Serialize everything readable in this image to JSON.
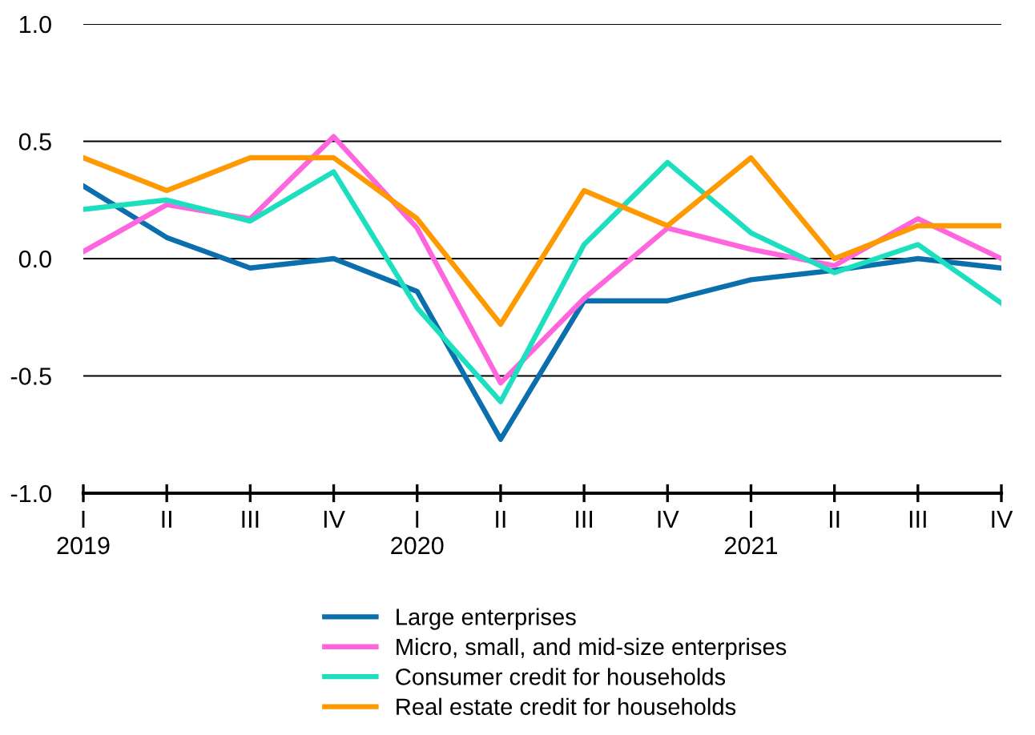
{
  "chart_data": {
    "type": "line",
    "categories": [
      "I\n2019",
      "II",
      "III",
      "IV",
      "I\n2020",
      "II",
      "III",
      "IV",
      "I\n2021",
      "II",
      "III",
      "IV"
    ],
    "series": [
      {
        "name": "Large enterprises",
        "color": "#0b6fad",
        "values": [
          0.31,
          0.09,
          -0.04,
          0.0,
          -0.14,
          -0.77,
          -0.18,
          -0.18,
          -0.09,
          -0.05,
          0.0,
          -0.04
        ]
      },
      {
        "name": "Micro, small, and mid-size enterprises",
        "color": "#ff66dd",
        "values": [
          0.03,
          0.23,
          0.17,
          0.52,
          0.13,
          -0.53,
          -0.17,
          0.13,
          0.04,
          -0.03,
          0.17,
          0.0
        ]
      },
      {
        "name": "Consumer credit for households",
        "color": "#1ddfbf",
        "values": [
          0.21,
          0.25,
          0.16,
          0.37,
          -0.21,
          -0.61,
          0.06,
          0.41,
          0.11,
          -0.06,
          0.06,
          -0.19
        ]
      },
      {
        "name": "Real estate credit for households",
        "color": "#ff9900",
        "values": [
          0.43,
          0.29,
          0.43,
          0.43,
          0.17,
          -0.28,
          0.29,
          0.14,
          0.43,
          0.0,
          0.14,
          0.14
        ]
      }
    ],
    "ylim": [
      -1.0,
      1.0
    ],
    "yticks": [
      {
        "value": -1.0,
        "label": "-1.0"
      },
      {
        "value": -0.5,
        "label": "-0.5"
      },
      {
        "value": 0.0,
        "label": "0.0"
      },
      {
        "value": 0.5,
        "label": "0.5"
      },
      {
        "value": 1.0,
        "label": "1.0"
      }
    ],
    "grid": "y",
    "legend": "bottom",
    "marker": "none",
    "line_style": "solid"
  }
}
